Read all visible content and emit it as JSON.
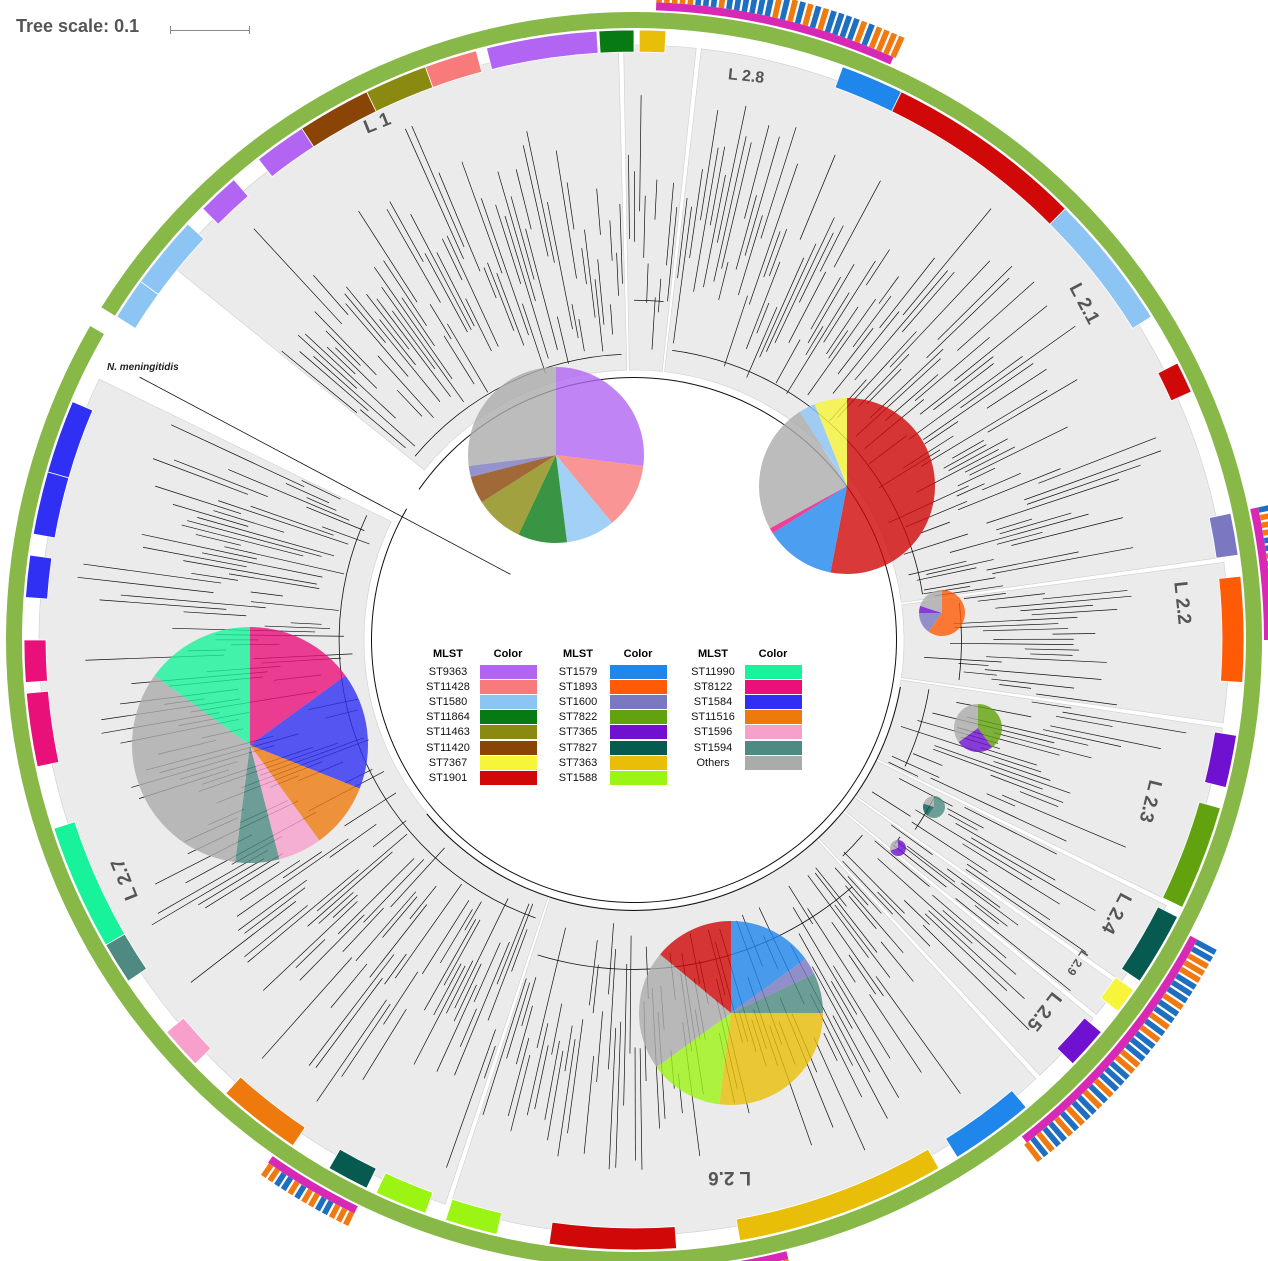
{
  "scale": {
    "title": "Tree scale: 0.1"
  },
  "outgroup_label": "N. meningitidis",
  "legend": {
    "header_mlst": "MLST",
    "header_color": "Color",
    "columns": [
      [
        {
          "st": "ST9363",
          "color": "#b265f2"
        },
        {
          "st": "ST11428",
          "color": "#f87a7a"
        },
        {
          "st": "ST1580",
          "color": "#8cc4f4"
        },
        {
          "st": "ST11864",
          "color": "#087a14"
        },
        {
          "st": "ST11463",
          "color": "#8a8a10"
        },
        {
          "st": "ST11420",
          "color": "#8a4406"
        },
        {
          "st": "ST7367",
          "color": "#f6f53a"
        },
        {
          "st": "ST1901",
          "color": "#d00808"
        }
      ],
      [
        {
          "st": "ST1579",
          "color": "#1f86ec"
        },
        {
          "st": "ST1893",
          "color": "#ff5a06"
        },
        {
          "st": "ST1600",
          "color": "#7a78c0"
        },
        {
          "st": "ST7822",
          "color": "#62a20e"
        },
        {
          "st": "ST7365",
          "color": "#7010d0"
        },
        {
          "st": "ST7827",
          "color": "#075a50"
        },
        {
          "st": "ST7363",
          "color": "#e8be08"
        },
        {
          "st": "ST1588",
          "color": "#9cf414"
        }
      ],
      [
        {
          "st": "ST11990",
          "color": "#18f29a"
        },
        {
          "st": "ST8122",
          "color": "#ea107a"
        },
        {
          "st": "ST1584",
          "color": "#3030f4"
        },
        {
          "st": "ST11516",
          "color": "#ee7a0e"
        },
        {
          "st": "ST1596",
          "color": "#f8a0cc"
        },
        {
          "st": "ST1594",
          "color": "#4e8a82"
        },
        {
          "st": "Others",
          "color": "#ababab"
        }
      ]
    ]
  },
  "lineages": [
    {
      "label": "L 1"
    },
    {
      "label": "L 2.8"
    },
    {
      "label": "L 2.1"
    },
    {
      "label": "L 2.2"
    },
    {
      "label": "L 2.3"
    },
    {
      "label": "L 2.4"
    },
    {
      "label": "L 2.9"
    },
    {
      "label": "L 2.5"
    },
    {
      "label": "L 2.6"
    },
    {
      "label": "L 2.7"
    }
  ],
  "pies": [
    {
      "lineage": "L 1",
      "slices": [
        {
          "st": "ST9363",
          "value": 0.27
        },
        {
          "st": "ST11428",
          "value": 0.12
        },
        {
          "st": "ST1580",
          "value": 0.09
        },
        {
          "st": "ST11864",
          "value": 0.09
        },
        {
          "st": "ST11463",
          "value": 0.09
        },
        {
          "st": "ST11420",
          "value": 0.05
        },
        {
          "st": "ST1600",
          "value": 0.02
        },
        {
          "st": "Others",
          "value": 0.27
        }
      ]
    },
    {
      "lineage": "L 2.1",
      "slices": [
        {
          "st": "ST1901",
          "value": 0.53
        },
        {
          "st": "ST1579",
          "value": 0.13
        },
        {
          "st": "ST8122",
          "value": 0.01
        },
        {
          "st": "Others",
          "value": 0.24
        },
        {
          "st": "ST1580",
          "value": 0.03
        },
        {
          "st": "ST7367",
          "value": 0.06
        }
      ]
    },
    {
      "lineage": "L 2.2",
      "slices": [
        {
          "st": "ST1893",
          "value": 0.6
        },
        {
          "st": "ST1600",
          "value": 0.15
        },
        {
          "st": "ST7365",
          "value": 0.05
        },
        {
          "st": "Others",
          "value": 0.2
        }
      ]
    },
    {
      "lineage": "L 2.3",
      "slices": [
        {
          "st": "ST7822",
          "value": 0.4
        },
        {
          "st": "ST7365",
          "value": 0.25
        },
        {
          "st": "Others",
          "value": 0.35
        }
      ]
    },
    {
      "lineage": "L 2.4",
      "slices": [
        {
          "st": "ST1594",
          "value": 0.6
        },
        {
          "st": "ST7827",
          "value": 0.2
        },
        {
          "st": "Others",
          "value": 0.2
        }
      ]
    },
    {
      "lineage": "L 2.5",
      "slices": [
        {
          "st": "ST7365",
          "value": 0.7
        },
        {
          "st": "Others",
          "value": 0.3
        }
      ]
    },
    {
      "lineage": "L 2.6",
      "slices": [
        {
          "st": "ST1579",
          "value": 0.15
        },
        {
          "st": "ST1600",
          "value": 0.03
        },
        {
          "st": "ST1594",
          "value": 0.07
        },
        {
          "st": "ST7363",
          "value": 0.27
        },
        {
          "st": "ST1588",
          "value": 0.13
        },
        {
          "st": "Others",
          "value": 0.21
        },
        {
          "st": "ST1901",
          "value": 0.14
        }
      ]
    },
    {
      "lineage": "L 2.7",
      "slices": [
        {
          "st": "ST8122",
          "value": 0.15
        },
        {
          "st": "ST1584",
          "value": 0.16
        },
        {
          "st": "ST11516",
          "value": 0.09
        },
        {
          "st": "ST1596",
          "value": 0.06
        },
        {
          "st": "ST1594",
          "value": 0.06
        },
        {
          "st": "Others",
          "value": 0.33
        },
        {
          "st": "ST11990",
          "value": 0.15
        }
      ]
    }
  ],
  "ring_colors": {
    "outer": "#88b848",
    "magenta": "#d829b6",
    "blue": "#1f6fc0",
    "orange": "#f07a10",
    "clade_bg": "#ebebeb"
  }
}
